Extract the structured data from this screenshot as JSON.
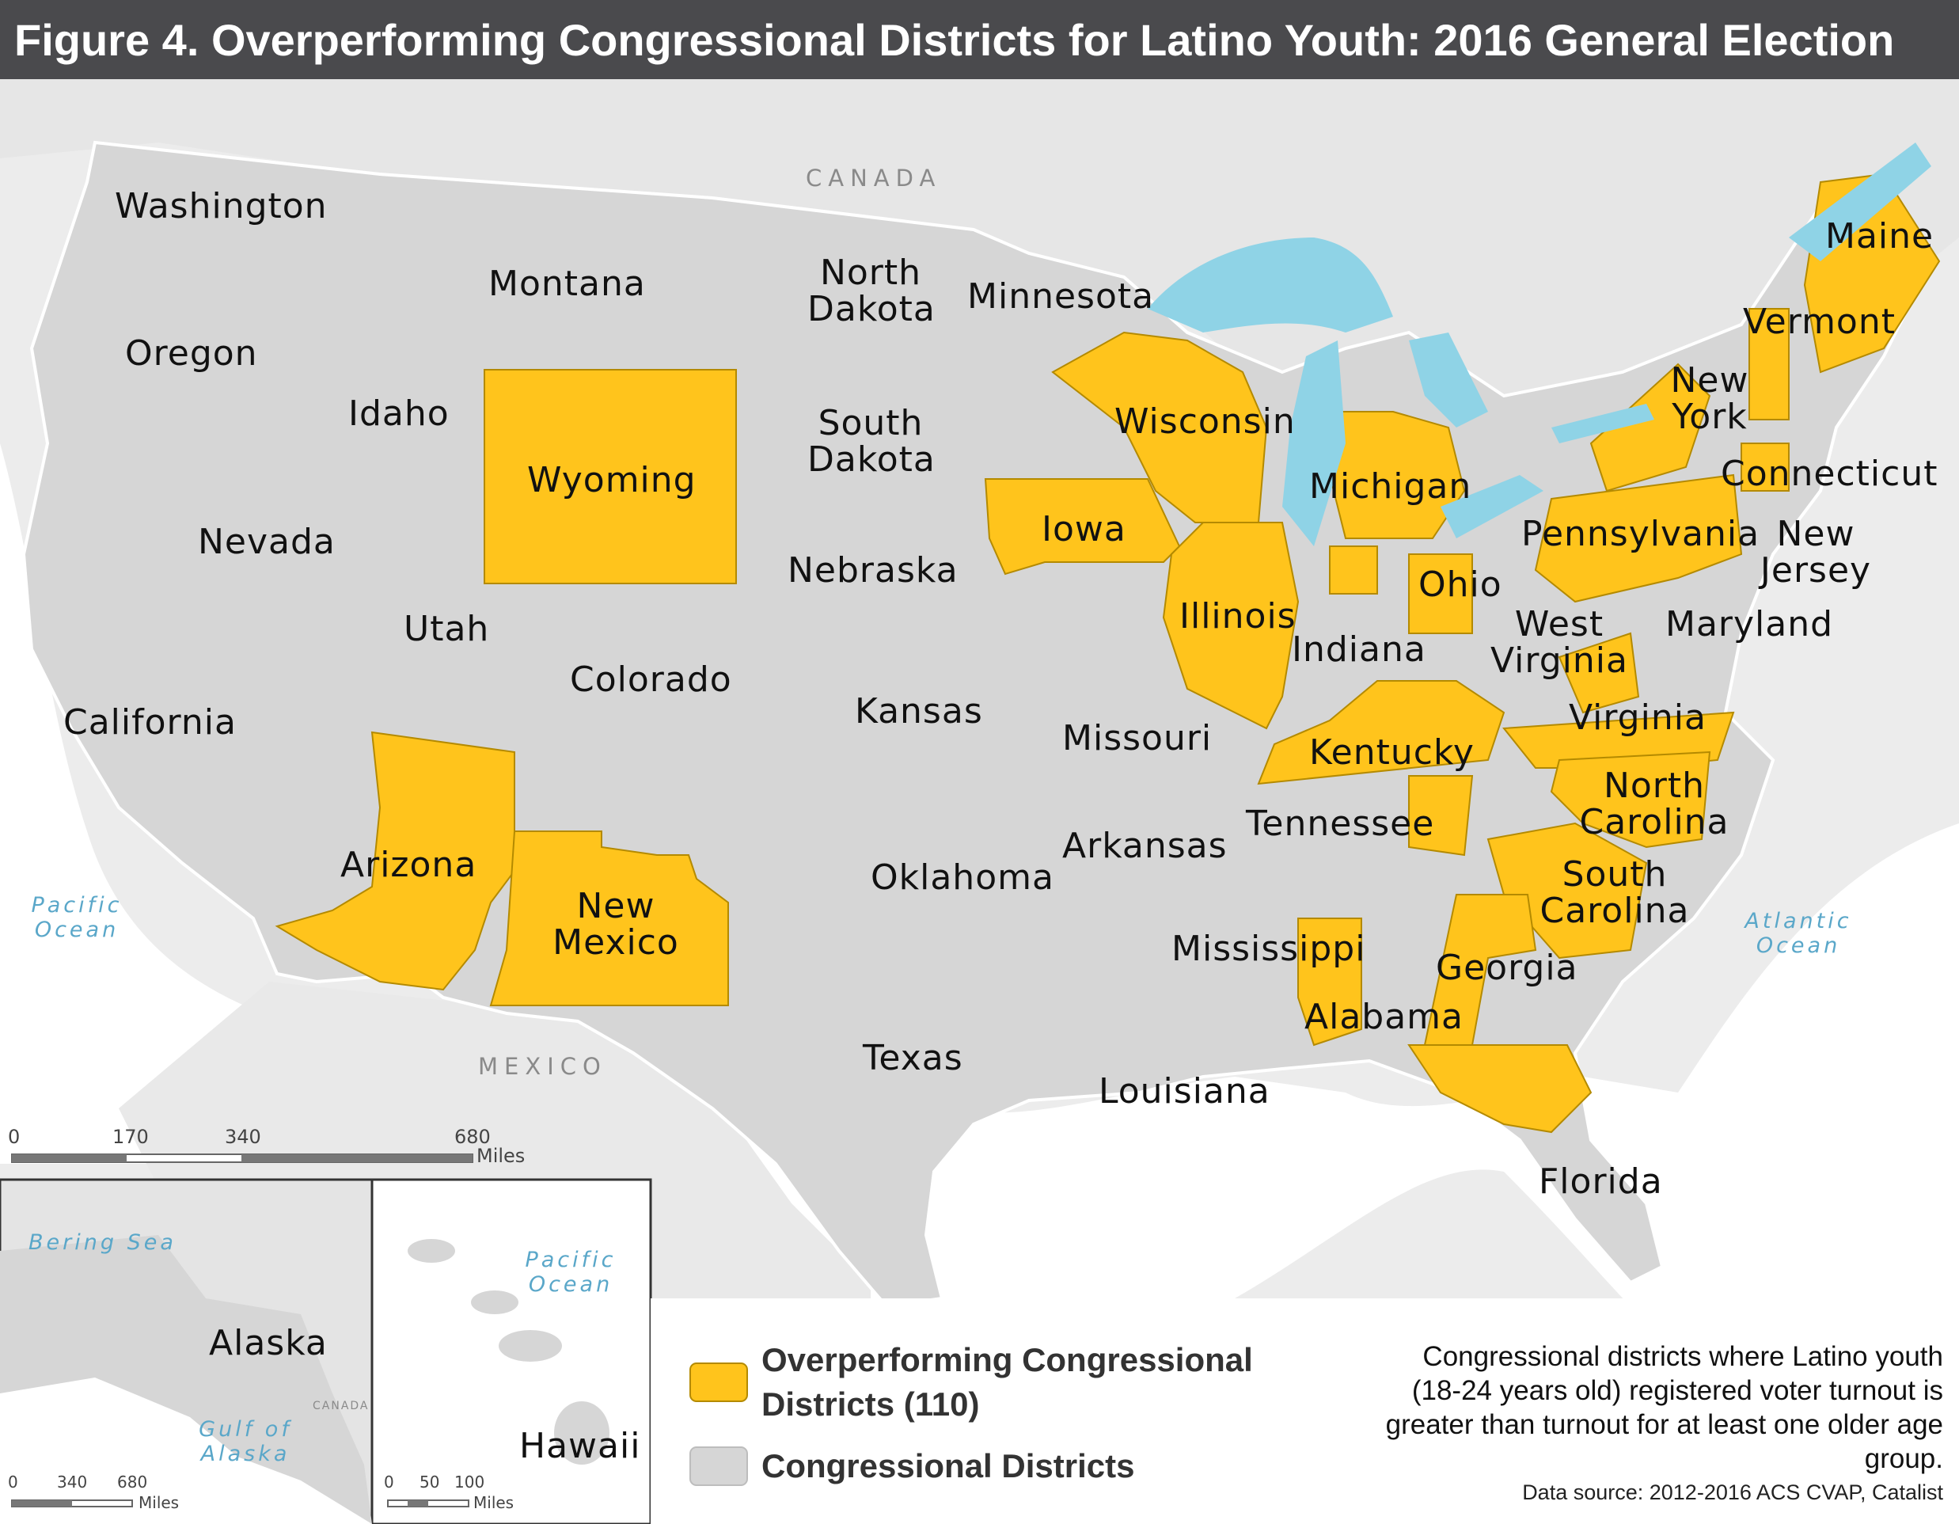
{
  "title": "Figure 4. Overperforming Congressional Districts for Latino Youth: 2016 General Election",
  "colors": {
    "overperforming": "#ffc41c",
    "district": "#d6d6d6",
    "water": "#8fd3e6",
    "background": "#ececec",
    "title_bar": "#4a4a4d"
  },
  "states": {
    "washington": "Washington",
    "oregon": "Oregon",
    "california": "California",
    "idaho": "Idaho",
    "nevada": "Nevada",
    "montana": "Montana",
    "wyoming": "Wyoming",
    "utah": "Utah",
    "colorado": "Colorado",
    "arizona": "Arizona",
    "new_mexico": "New Mexico",
    "north_dakota": "North Dakota",
    "south_dakota": "South Dakota",
    "nebraska": "Nebraska",
    "kansas": "Kansas",
    "oklahoma": "Oklahoma",
    "texas": "Texas",
    "minnesota": "Minnesota",
    "iowa": "Iowa",
    "missouri": "Missouri",
    "arkansas": "Arkansas",
    "louisiana": "Louisiana",
    "wisconsin": "Wisconsin",
    "illinois": "Illinois",
    "michigan": "Michigan",
    "indiana": "Indiana",
    "ohio": "Ohio",
    "kentucky": "Kentucky",
    "tennessee": "Tennessee",
    "mississippi": "Mississippi",
    "alabama": "Alabama",
    "georgia": "Georgia",
    "florida": "Florida",
    "south_carolina": "South Carolina",
    "north_carolina": "North Carolina",
    "virginia": "Virginia",
    "west_virginia": "West Virginia",
    "maryland": "Maryland",
    "pennsylvania": "Pennsylvania",
    "new_jersey": "New Jersey",
    "new_york": "New York",
    "connecticut": "Connecticut",
    "vermont": "Vermont",
    "maine": "Maine",
    "alaska": "Alaska",
    "hawaii": "Hawaii"
  },
  "overperforming_states": [
    "Wyoming",
    "Arizona",
    "New Mexico",
    "Iowa",
    "Wisconsin",
    "Illinois",
    "Michigan",
    "Indiana",
    "Ohio",
    "Pennsylvania",
    "New York",
    "Vermont",
    "Maine",
    "Connecticut",
    "New Jersey",
    "Kentucky",
    "Virginia",
    "West Virginia",
    "North Carolina",
    "South Carolina",
    "Georgia",
    "Alabama",
    "Florida",
    "Tennessee"
  ],
  "water_labels": {
    "pacific_main": "Pacific Ocean",
    "atlantic": "Atlantic Ocean",
    "bering": "Bering Sea",
    "gulf_alaska": "Gulf of Alaska",
    "pacific_hawaii": "Pacific Ocean"
  },
  "countries": {
    "canada": "CANADA",
    "mexico": "MEXICO",
    "canada_inset": "CANADA"
  },
  "scales": {
    "main": {
      "ticks": [
        "0",
        "170",
        "340",
        "680"
      ],
      "unit": "Miles"
    },
    "alaska": {
      "ticks": [
        "0",
        "340",
        "680"
      ],
      "unit": "Miles"
    },
    "hawaii": {
      "ticks": [
        "0",
        "50",
        "100"
      ],
      "unit": "Miles"
    }
  },
  "legend": {
    "overperforming": "Overperforming Congressional Districts (110)",
    "districts": "Congressional Districts"
  },
  "note": "Congressional districts where Latino youth (18-24 years old) registered voter turnout is greater than turnout for at least one older age group.",
  "source": "Data source: 2012-2016 ACS CVAP, Catalist"
}
